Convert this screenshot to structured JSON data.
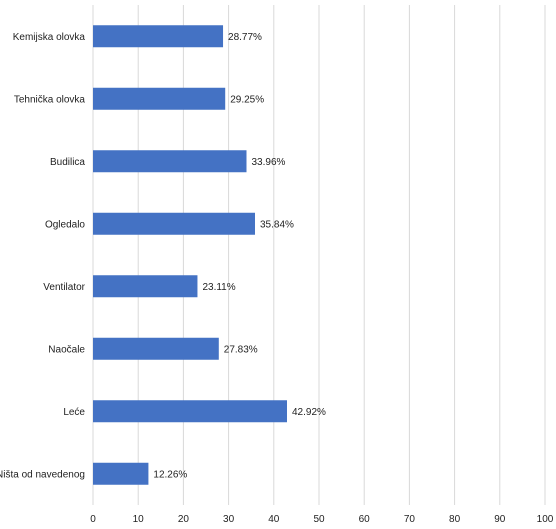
{
  "chart_data": {
    "type": "bar",
    "orientation": "horizontal",
    "categories": [
      "Kemijska olovka",
      "Tehnička olovka",
      "Budilica",
      "Ogledalo",
      "Ventilator",
      "Naočale",
      "Leće",
      "Ništa od navedenog"
    ],
    "values": [
      28.77,
      29.25,
      33.96,
      35.84,
      23.11,
      27.83,
      42.92,
      12.26
    ],
    "value_labels": [
      "28.77%",
      "29.25%",
      "33.96%",
      "35.84%",
      "23.11%",
      "27.83%",
      "42.92%",
      "12.26%"
    ],
    "xlim": [
      0,
      100
    ],
    "x_ticks": [
      "0",
      "10",
      "20",
      "30",
      "40",
      "50",
      "60",
      "70",
      "80",
      "90",
      "100"
    ],
    "grid": true,
    "bar_color": "#4472c4"
  }
}
